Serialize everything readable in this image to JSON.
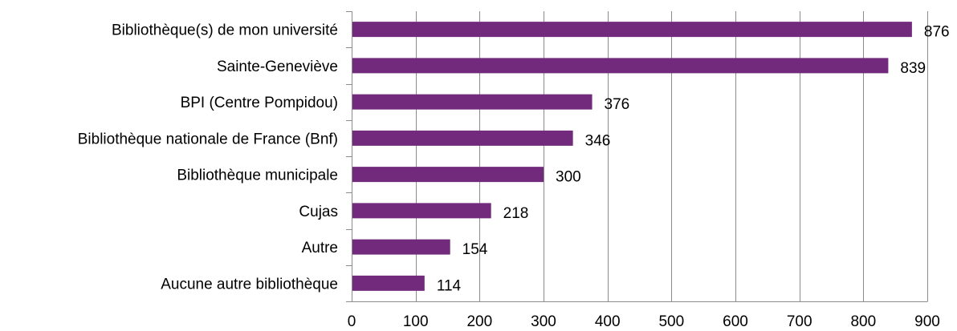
{
  "chart_data": {
    "type": "bar",
    "orientation": "horizontal",
    "title": "",
    "xlabel": "",
    "ylabel": "",
    "categories": [
      "Bibliothèque(s) de mon université",
      "Sainte-Geneviève",
      "BPI (Centre Pompidou)",
      "Bibliothèque nationale de France (Bnf)",
      "Bibliothèque municipale",
      "Cujas",
      "Autre",
      "Aucune autre bibliothèque"
    ],
    "values": [
      876,
      839,
      376,
      346,
      300,
      218,
      154,
      114
    ],
    "xlim": [
      0,
      900
    ],
    "xticks": [
      "0",
      "100",
      "200",
      "300",
      "400",
      "500",
      "600",
      "700",
      "800",
      "900"
    ],
    "grid": "vertical",
    "legend": "none",
    "bar_color": "#722B7C",
    "grid_color": "#8C8C8C"
  }
}
